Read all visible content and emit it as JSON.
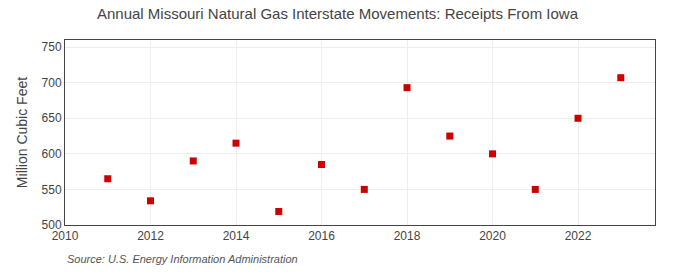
{
  "chart_data": {
    "type": "scatter",
    "title": "Annual Missouri Natural Gas Interstate Movements: Receipts From Iowa",
    "y_label": "Million Cubic Feet",
    "annotations": [
      "Source: U.S. Energy Information Administration"
    ],
    "x": [
      2011,
      2012,
      2013,
      2014,
      2015,
      2016,
      2017,
      2018,
      2019,
      2020,
      2021,
      2022,
      2023
    ],
    "values": [
      565,
      534,
      590,
      615,
      519,
      585,
      550,
      693,
      625,
      600,
      550,
      650,
      707
    ],
    "color": "#cc0000",
    "marker": "square",
    "xlim": [
      2010,
      2023.8
    ],
    "xticks": [
      2010,
      2012,
      2014,
      2016,
      2018,
      2020,
      2022
    ],
    "ylim": [
      500,
      760
    ],
    "yticks": [
      500,
      550,
      600,
      650,
      700,
      750
    ],
    "grid": true
  }
}
